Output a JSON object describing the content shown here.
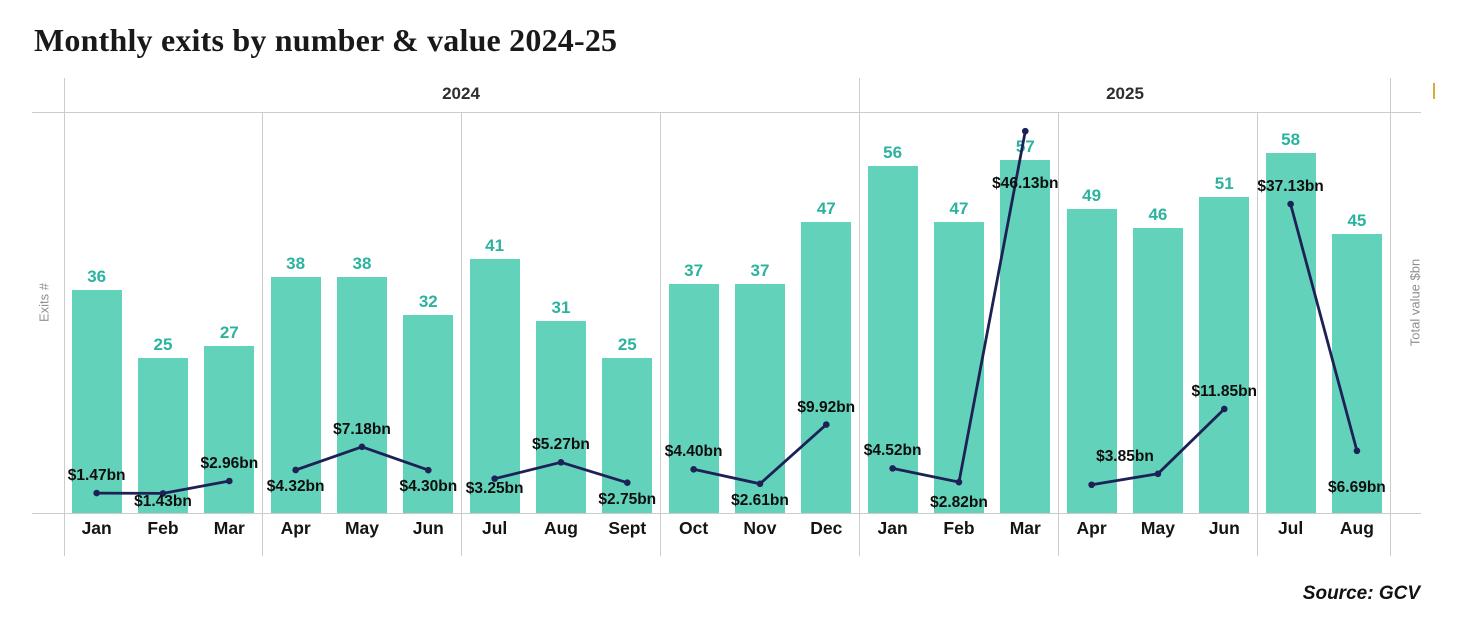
{
  "title": "Monthly exits by number & value 2024-25",
  "source": "Source: GCV",
  "axes": {
    "left_label": "Exits #",
    "right_label": "Total value $bn"
  },
  "colors": {
    "bar": "#63d2ba",
    "bar_count_label": "#2bb3a0",
    "line": "#1d2156",
    "value_label": "#0e0e0e",
    "gridline": "#cccccc",
    "axis_title": "#8f8f8f",
    "background": "#ffffff"
  },
  "chart_data": {
    "type": "bar+line combo",
    "title": "Monthly exits by number & value 2024-25",
    "grid": "quarterly vertical separators, top header rule, baseline rule",
    "legend_position": "none",
    "year_groups": [
      {
        "label": "2024",
        "months": 12
      },
      {
        "label": "2025",
        "months": 8
      }
    ],
    "categories": [
      "Jan",
      "Feb",
      "Mar",
      "Apr",
      "May",
      "Jun",
      "Jul",
      "Aug",
      "Sept",
      "Oct",
      "Nov",
      "Dec",
      "Jan",
      "Feb",
      "Mar",
      "Apr",
      "May",
      "Jun",
      "Jul",
      "Aug"
    ],
    "series": [
      {
        "name": "Exits #",
        "type": "bar",
        "values": [
          36,
          25,
          27,
          38,
          38,
          32,
          41,
          31,
          25,
          37,
          37,
          47,
          56,
          47,
          57,
          49,
          46,
          51,
          58,
          45
        ]
      },
      {
        "name": "Total value $bn",
        "type": "line",
        "values": [
          1.47,
          1.43,
          2.96,
          4.32,
          7.18,
          4.3,
          3.25,
          5.27,
          2.75,
          4.4,
          2.61,
          9.92,
          4.52,
          2.82,
          46.13,
          2.5,
          3.85,
          11.85,
          37.13,
          6.69
        ],
        "point_labels": [
          {
            "text": "$1.47bn",
            "pos": "above"
          },
          {
            "text": "$1.43bn",
            "pos": "below",
            "dy": -8
          },
          {
            "text": "$2.96bn",
            "pos": "above"
          },
          {
            "text": "$4.32bn",
            "pos": "below"
          },
          {
            "text": "$7.18bn",
            "pos": "above"
          },
          {
            "text": "$4.30bn",
            "pos": "below"
          },
          {
            "text": "$3.25bn",
            "pos": "below",
            "dy": -7
          },
          {
            "text": "$5.27bn",
            "pos": "above"
          },
          {
            "text": "$2.75bn",
            "pos": "below"
          },
          {
            "text": "$4.40bn",
            "pos": "above"
          },
          {
            "text": "$2.61bn",
            "pos": "below"
          },
          {
            "text": "$9.92bn",
            "pos": "above"
          },
          {
            "text": "$4.52bn",
            "pos": "above"
          },
          {
            "text": "$2.82bn",
            "pos": "below",
            "dy": 4
          },
          {
            "text": "$46.13bn",
            "pos": "below",
            "dy": 36
          },
          {
            "text": "",
            "pos": "none"
          },
          {
            "text": "$3.85bn",
            "pos": "above",
            "dx": -33
          },
          {
            "text": "$11.85bn",
            "pos": "above"
          },
          {
            "text": "$37.13bn",
            "pos": "above"
          },
          {
            "text": "$6.69bn",
            "pos": "below",
            "dy": 20
          }
        ],
        "note": "Apr 2025 point has no printed label; value ~2.5 estimated from plot"
      }
    ],
    "line_breaks_between_quarters": true,
    "quarter_boundaries_month_index": [
      0,
      3,
      6,
      9,
      12,
      15,
      18,
      20
    ]
  }
}
